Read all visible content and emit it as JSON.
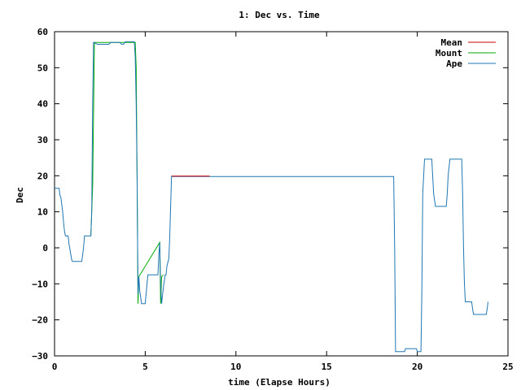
{
  "chart_data": {
    "type": "line",
    "title": "1: Dec vs. Time",
    "xlabel": "time (Elapse Hours)",
    "ylabel": "Dec",
    "xlim": [
      0,
      25
    ],
    "ylim": [
      -30,
      60
    ],
    "xticks": [
      0,
      5,
      10,
      15,
      20,
      25
    ],
    "yticks": [
      -30,
      -20,
      -10,
      0,
      10,
      20,
      30,
      40,
      50,
      60
    ],
    "grid": false,
    "legend_position": "top-right",
    "series": [
      {
        "name": "Mean",
        "color": "#cc0000",
        "x": [
          6.45,
          8.55
        ],
        "y": [
          19.9,
          19.9
        ]
      },
      {
        "name": "Mount",
        "color": "#00aa00",
        "x": [
          2.0,
          2.1,
          2.2,
          2.3,
          4.45,
          4.5,
          4.55,
          4.6,
          4.65,
          5.8,
          5.85,
          5.9,
          6.0
        ],
        "y": [
          3.3,
          17.0,
          57.0,
          57.0,
          57.0,
          50.0,
          20.0,
          -15.5,
          -8.0,
          1.5,
          -15.5,
          -8.0,
          -7.5
        ]
      },
      {
        "name": "Ape",
        "color": "#1f77b4",
        "x": [
          0.0,
          0.25,
          0.3,
          0.35,
          0.45,
          0.5,
          0.55,
          0.6,
          0.7,
          0.75,
          0.8,
          0.9,
          0.95,
          1.0,
          1.5,
          1.55,
          1.6,
          1.65,
          2.0,
          2.05,
          2.1,
          2.15,
          2.2,
          2.35,
          2.5,
          2.6,
          3.0,
          3.1,
          3.6,
          3.7,
          3.8,
          3.9,
          4.4,
          4.45,
          4.5,
          4.55,
          4.6,
          4.65,
          4.7,
          4.8,
          4.85,
          5.0,
          5.1,
          5.15,
          5.7,
          5.75,
          5.8,
          5.85,
          5.9,
          6.0,
          6.1,
          6.15,
          6.2,
          6.3,
          6.35,
          6.45,
          6.5,
          18.7,
          18.75,
          18.8,
          19.3,
          19.35,
          19.45,
          19.95,
          20.0,
          20.2,
          20.25,
          20.3,
          20.4,
          20.45,
          20.8,
          20.85,
          20.9,
          21.0,
          21.05,
          21.6,
          21.65,
          21.7,
          21.8,
          21.85,
          22.45,
          22.5,
          22.55,
          22.6,
          22.65,
          23.0,
          23.05,
          23.1,
          23.2,
          23.25,
          23.8,
          23.85,
          23.9
        ],
        "y": [
          16.5,
          16.5,
          14.5,
          14.0,
          10.0,
          7.0,
          4.5,
          3.3,
          3.3,
          3.3,
          1.0,
          -2.0,
          -3.5,
          -3.8,
          -3.8,
          -2.0,
          0.0,
          3.3,
          3.3,
          10.0,
          40.0,
          57.0,
          57.0,
          56.5,
          56.5,
          56.5,
          56.5,
          57.0,
          57.0,
          56.5,
          56.5,
          57.2,
          57.2,
          53.0,
          40.0,
          20.0,
          -13.0,
          -8.0,
          -12.0,
          -15.5,
          -15.5,
          -15.5,
          -10.0,
          -7.5,
          -7.5,
          -2.0,
          1.5,
          -10.0,
          -15.5,
          -11.0,
          -7.5,
          -7.5,
          -5.0,
          -3.0,
          3.0,
          19.9,
          19.8,
          19.8,
          0.0,
          -28.8,
          -28.8,
          -28.0,
          -28.0,
          -28.0,
          -28.8,
          -28.8,
          -12.0,
          15.0,
          24.6,
          24.6,
          24.6,
          20.0,
          15.0,
          11.5,
          11.5,
          11.5,
          15.0,
          20.0,
          24.6,
          24.6,
          24.6,
          15.0,
          0.0,
          -10.0,
          -15.0,
          -15.0,
          -17.0,
          -18.5,
          -18.5,
          -18.5,
          -18.5,
          -17.0,
          -15.0
        ]
      }
    ]
  }
}
